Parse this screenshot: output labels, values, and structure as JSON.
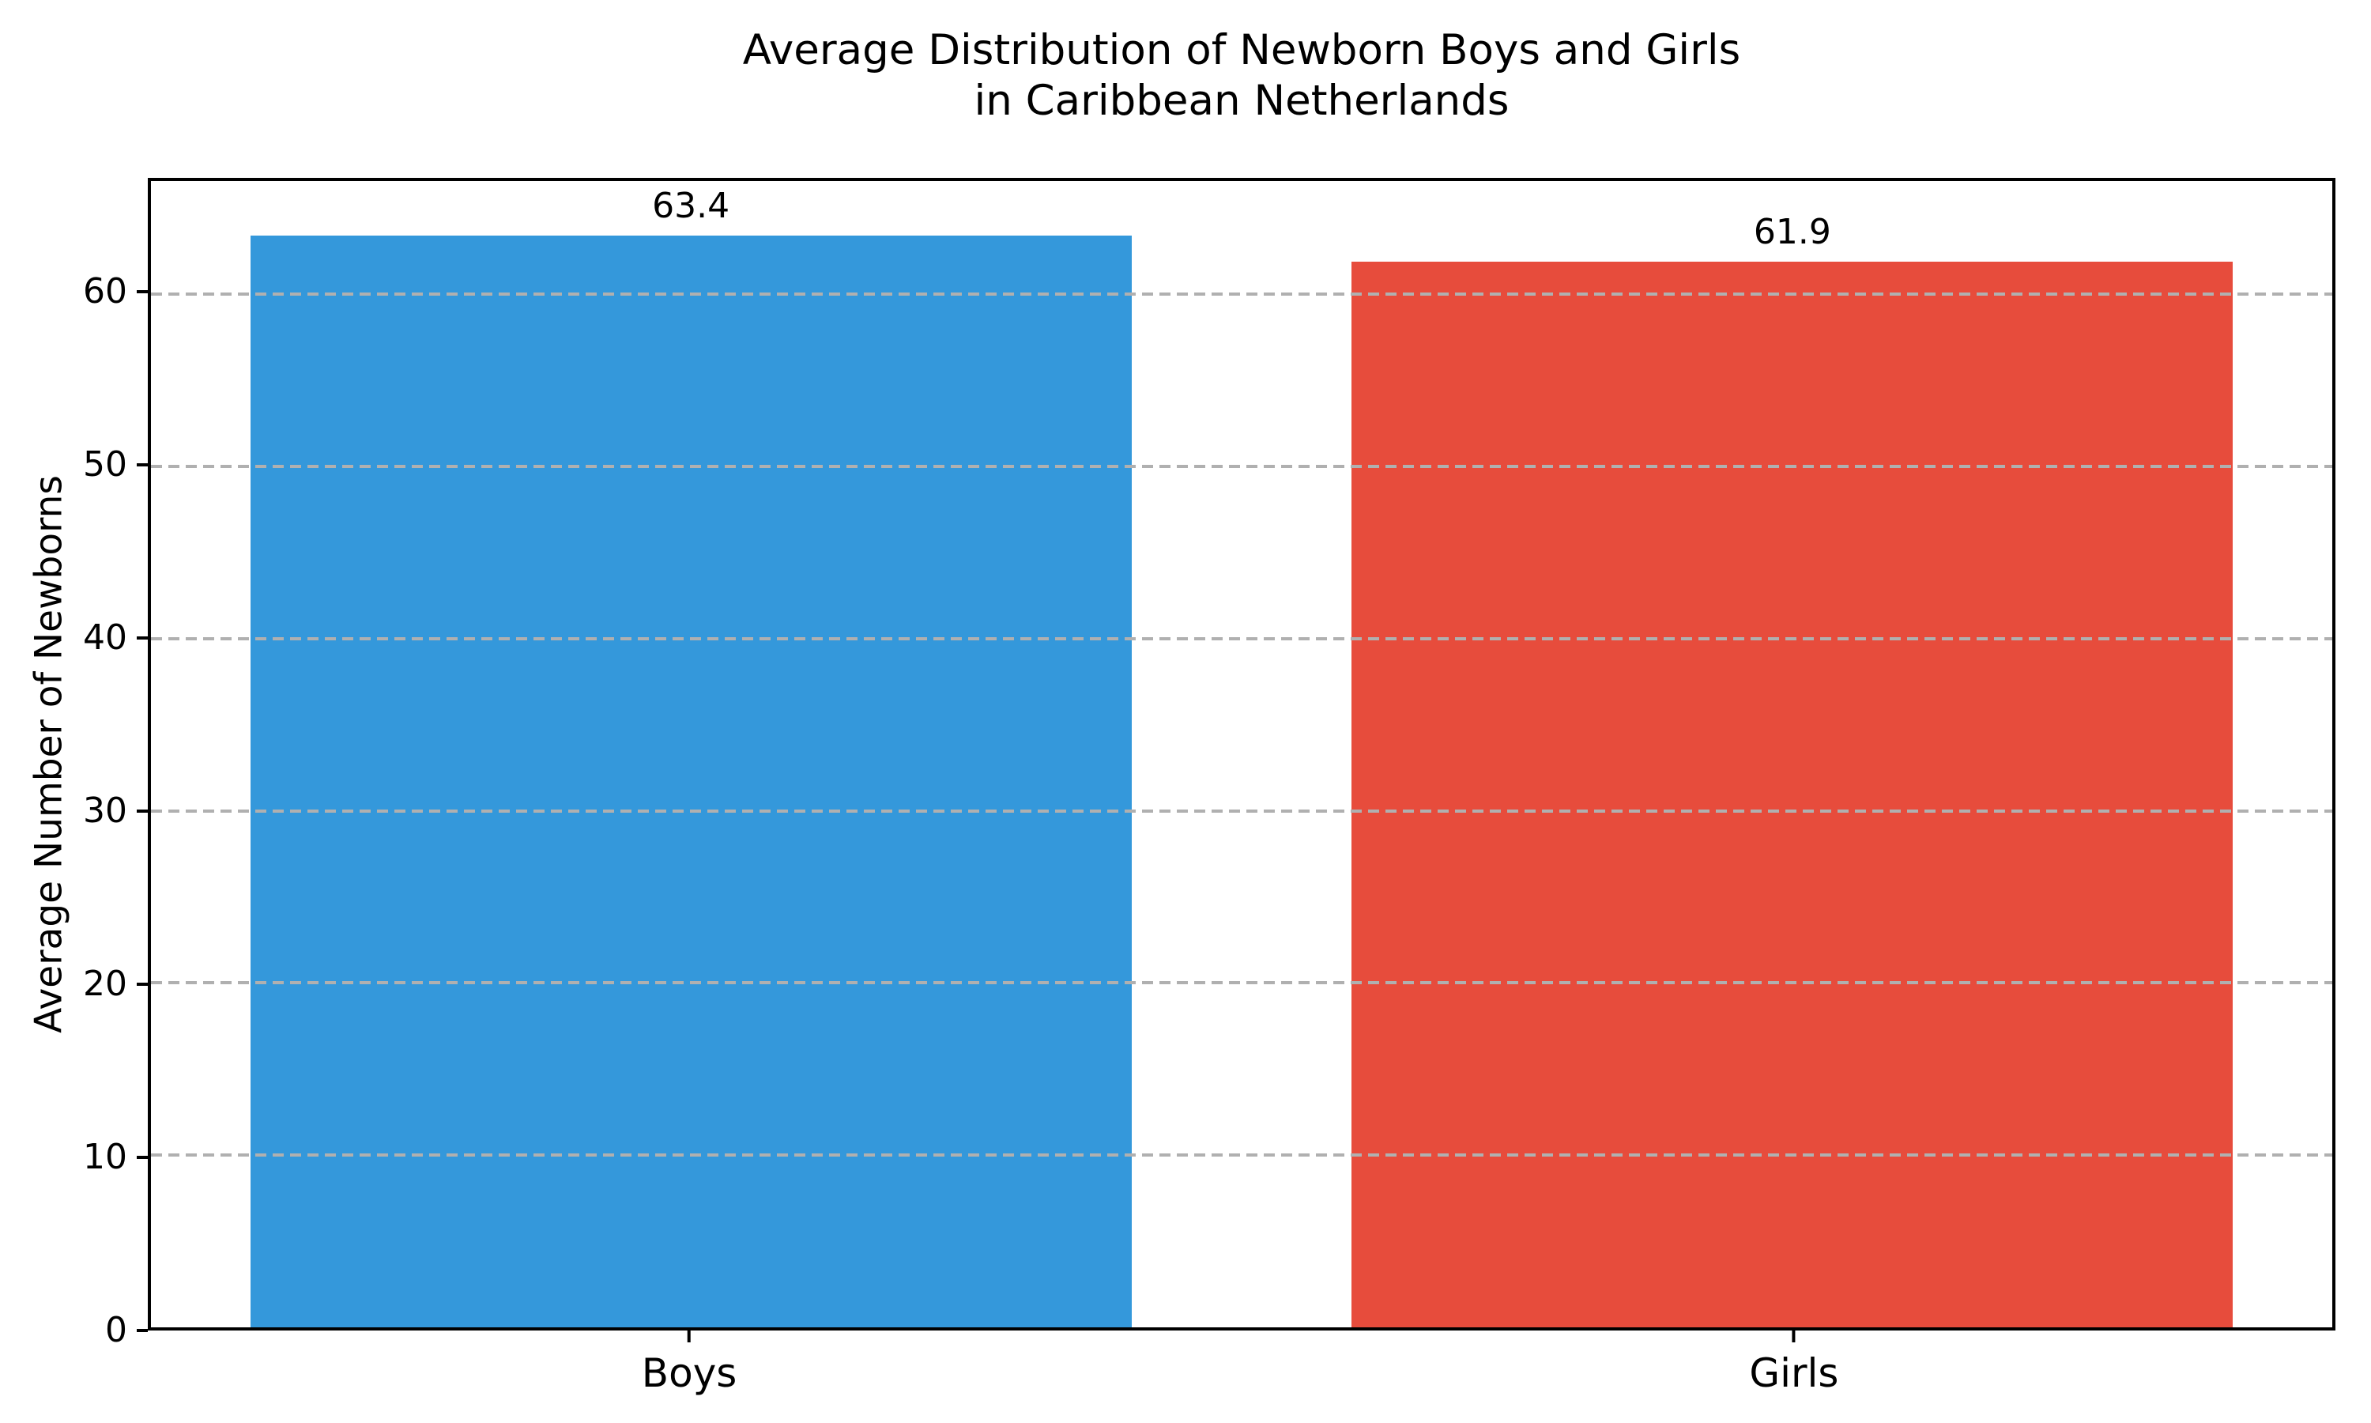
{
  "chart_data": {
    "type": "bar",
    "title": "Average Distribution of Newborn Boys and Girls\nin Caribbean Netherlands",
    "title_lines": [
      "Average Distribution of Newborn Boys and Girls",
      "in Caribbean Netherlands"
    ],
    "xlabel": "",
    "ylabel": "Average Number of Newborns",
    "categories": [
      "Boys",
      "Girls"
    ],
    "values": [
      63.4,
      61.9
    ],
    "value_labels": [
      "63.4",
      "61.9"
    ],
    "bar_colors": [
      "#3498db",
      "#e74c3c"
    ],
    "yticks": [
      0,
      10,
      20,
      30,
      40,
      50,
      60
    ],
    "ylim": [
      0,
      66.57
    ],
    "grid": {
      "axis": "y",
      "style": "dashed",
      "color": "#b0b0b0",
      "on_top_of_bars": true
    },
    "legend": "none",
    "background_color": "#ffffff",
    "text_color": "#000000"
  }
}
